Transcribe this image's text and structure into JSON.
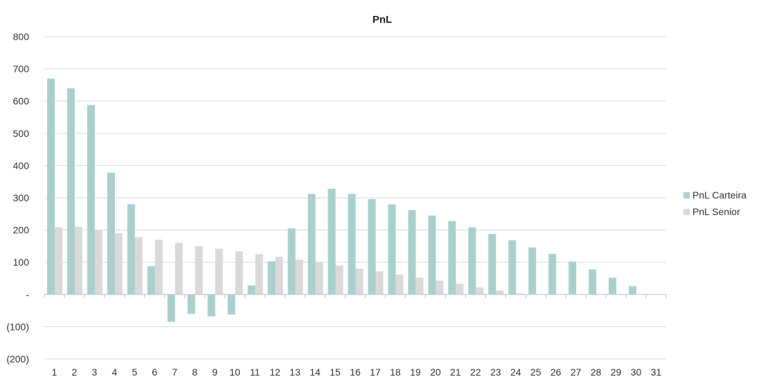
{
  "chart_data": {
    "type": "bar",
    "title": "PnL",
    "xlabel": "",
    "ylabel": "",
    "ylim": [
      -200,
      800
    ],
    "ytick_values": [
      800,
      700,
      600,
      500,
      400,
      300,
      200,
      100,
      0,
      -100,
      -200
    ],
    "ytick_labels": [
      "800",
      "700",
      "600",
      "500",
      "400",
      "300",
      "200",
      "100",
      "-",
      "(100)",
      "(200)"
    ],
    "grid": true,
    "legend_position": "right",
    "categories": [
      "1",
      "2",
      "3",
      "4",
      "5",
      "6",
      "7",
      "8",
      "9",
      "10",
      "11",
      "12",
      "13",
      "14",
      "15",
      "16",
      "17",
      "18",
      "19",
      "20",
      "21",
      "22",
      "23",
      "24",
      "25",
      "26",
      "27",
      "28",
      "29",
      "30",
      "31"
    ],
    "series": [
      {
        "name": "PnL Carteira",
        "color": "#a9d0ce",
        "values": [
          670,
          640,
          588,
          378,
          280,
          88,
          -85,
          -60,
          -68,
          -62,
          28,
          103,
          205,
          312,
          328,
          312,
          296,
          280,
          262,
          245,
          228,
          208,
          188,
          168,
          146,
          126,
          102,
          78,
          52,
          26,
          null
        ]
      },
      {
        "name": "PnL Senior",
        "color": "#d9d9d9",
        "values": [
          208,
          210,
          200,
          190,
          178,
          170,
          160,
          150,
          142,
          134,
          125,
          117,
          108,
          100,
          90,
          80,
          72,
          62,
          52,
          43,
          33,
          22,
          12,
          3,
          null,
          null,
          null,
          null,
          null,
          null,
          null
        ]
      }
    ]
  }
}
